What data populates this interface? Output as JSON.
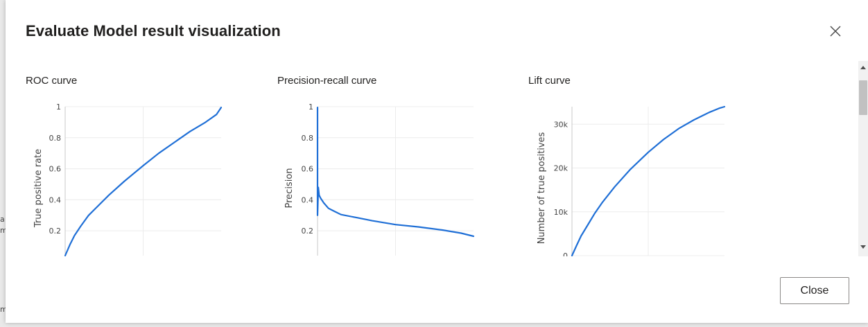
{
  "dialog": {
    "title": "Evaluate Model result visualization",
    "close_button_label": "Close",
    "close_icon": "close-icon"
  },
  "colors": {
    "series": "#1f6fd6",
    "grid": "#ececec",
    "axis": "#c8c8c8"
  },
  "background_text": {
    "edge_letters": [
      "a",
      "m",
      "m"
    ]
  },
  "chart_data": [
    {
      "type": "line",
      "title": "ROC curve",
      "xlabel": "",
      "ylabel": "True positive rate",
      "yticks": [
        "1",
        "0.8",
        "0.6",
        "0.4",
        "0.2"
      ],
      "xlim": [
        0,
        1
      ],
      "ylim": [
        0.04,
        1.0
      ],
      "grid": true,
      "series": [
        {
          "x": [
            0.0,
            0.03,
            0.06,
            0.1,
            0.15,
            0.2,
            0.28,
            0.38,
            0.5,
            0.6,
            0.7,
            0.8,
            0.9,
            0.97,
            1.0
          ],
          "y": [
            0.04,
            0.11,
            0.17,
            0.23,
            0.3,
            0.35,
            0.43,
            0.52,
            0.62,
            0.7,
            0.77,
            0.84,
            0.9,
            0.95,
            0.995
          ]
        }
      ]
    },
    {
      "type": "line",
      "title": "Precision-recall curve",
      "xlabel": "",
      "ylabel": "Precision",
      "yticks": [
        "1",
        "0.8",
        "0.6",
        "0.4",
        "0.2"
      ],
      "xlim": [
        0,
        1
      ],
      "ylim": [
        0.04,
        1.0
      ],
      "grid": true,
      "series": [
        {
          "x": [
            0.0,
            0.0,
            0.005,
            0.01,
            0.02,
            0.04,
            0.07,
            0.1,
            0.15,
            0.25,
            0.35,
            0.5,
            0.65,
            0.8,
            0.92,
            1.0
          ],
          "y": [
            0.995,
            0.3,
            0.48,
            0.43,
            0.41,
            0.38,
            0.345,
            0.33,
            0.305,
            0.285,
            0.265,
            0.24,
            0.225,
            0.205,
            0.185,
            0.165
          ]
        }
      ]
    },
    {
      "type": "line",
      "title": "Lift curve",
      "xlabel": "",
      "ylabel": "Number of true positives",
      "yticks": [
        "30k",
        "20k",
        "10k",
        "0"
      ],
      "xlim": [
        0,
        1
      ],
      "ylim": [
        0,
        34000
      ],
      "grid": true,
      "series": [
        {
          "x": [
            0.0,
            0.03,
            0.06,
            0.1,
            0.15,
            0.2,
            0.28,
            0.38,
            0.5,
            0.6,
            0.7,
            0.8,
            0.9,
            0.97,
            1.0
          ],
          "y": [
            0,
            2300,
            4500,
            6800,
            9700,
            12200,
            15700,
            19600,
            23600,
            26500,
            29000,
            31000,
            32700,
            33700,
            34000
          ]
        }
      ]
    }
  ]
}
